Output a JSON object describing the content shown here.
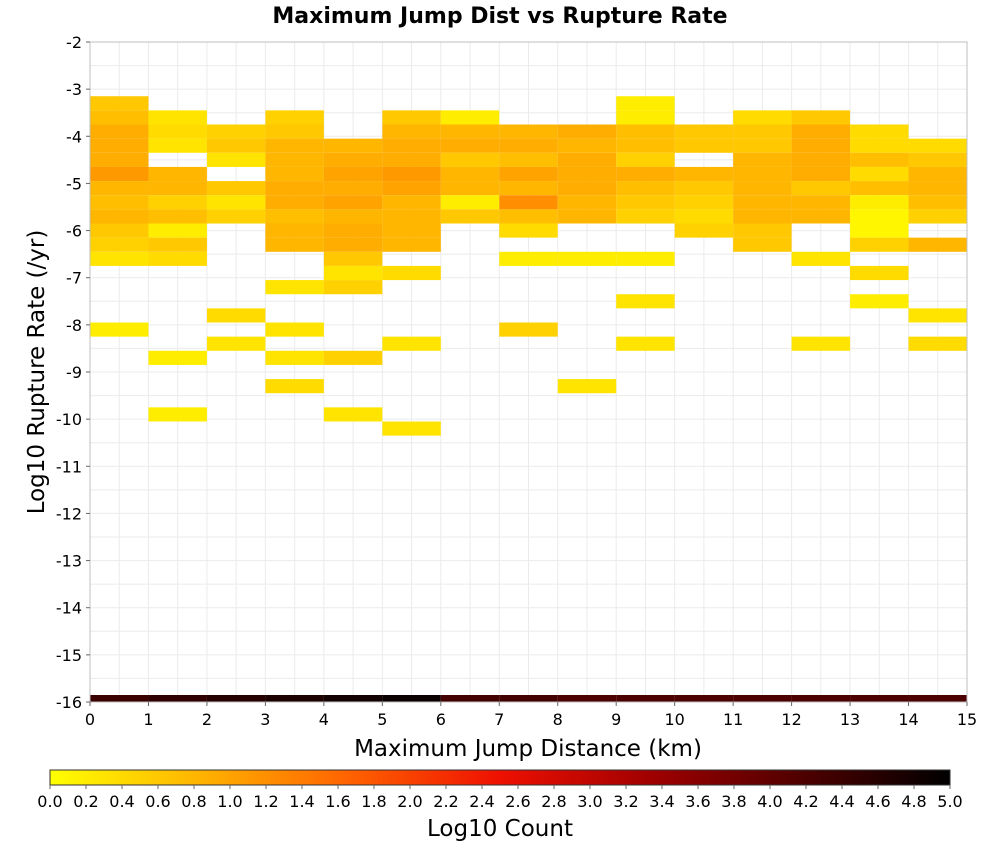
{
  "chart_data": {
    "type": "heatmap",
    "title": "Maximum Jump Dist vs Rupture Rate",
    "xlabel": "Maximum Jump Distance (km)",
    "ylabel": "Log10 Rupture Rate (/yr)",
    "xlim": [
      0,
      15
    ],
    "ylim": [
      -16,
      -2
    ],
    "x_ticks": [
      "0",
      "1",
      "2",
      "3",
      "4",
      "5",
      "6",
      "7",
      "8",
      "9",
      "10",
      "11",
      "12",
      "13",
      "14",
      "15"
    ],
    "y_ticks": [
      "-2",
      "-3",
      "-4",
      "-5",
      "-6",
      "-7",
      "-8",
      "-9",
      "-10",
      "-11",
      "-12",
      "-13",
      "-14",
      "-15",
      "-16"
    ],
    "grid": true,
    "colorbar": {
      "label": "Log10 Count",
      "range": [
        0.0,
        5.0
      ],
      "ticks": [
        "0.0",
        "0.2",
        "0.4",
        "0.6",
        "0.8",
        "1.0",
        "1.2",
        "1.4",
        "1.6",
        "1.8",
        "2.0",
        "2.2",
        "2.4",
        "2.6",
        "2.8",
        "3.0",
        "3.2",
        "3.4",
        "3.6",
        "3.8",
        "4.0",
        "4.2",
        "4.4",
        "4.6",
        "4.8",
        "5.0"
      ],
      "stops": [
        "#ffff00",
        "#ffb300",
        "#ff6200",
        "#ee1000",
        "#a00000",
        "#500000",
        "#000000"
      ]
    },
    "bin_width_x": 1,
    "bin_height_y": 0.3,
    "cells": [
      [
        0,
        -3.3,
        0.6
      ],
      [
        0,
        -3.6,
        0.7
      ],
      [
        0,
        -3.9,
        0.9
      ],
      [
        0,
        -4.2,
        0.9
      ],
      [
        0,
        -4.5,
        0.9
      ],
      [
        0,
        -4.8,
        1.1
      ],
      [
        0,
        -5.1,
        0.8
      ],
      [
        0,
        -5.4,
        0.7
      ],
      [
        0,
        -5.7,
        0.8
      ],
      [
        0,
        -6.0,
        0.6
      ],
      [
        0,
        -6.3,
        0.5
      ],
      [
        0,
        -6.6,
        0.3
      ],
      [
        0,
        -8.1,
        0.2
      ],
      [
        1,
        -3.6,
        0.3
      ],
      [
        1,
        -3.9,
        0.4
      ],
      [
        1,
        -4.2,
        0.3
      ],
      [
        1,
        -4.8,
        0.8
      ],
      [
        1,
        -5.1,
        0.8
      ],
      [
        1,
        -5.4,
        0.5
      ],
      [
        1,
        -5.7,
        0.7
      ],
      [
        1,
        -6.0,
        0.2
      ],
      [
        1,
        -6.3,
        0.6
      ],
      [
        1,
        -6.6,
        0.4
      ],
      [
        1,
        -8.7,
        0.2
      ],
      [
        1,
        -9.9,
        0.2
      ],
      [
        2,
        -3.9,
        0.5
      ],
      [
        2,
        -4.2,
        0.6
      ],
      [
        2,
        -4.5,
        0.3
      ],
      [
        2,
        -5.1,
        0.6
      ],
      [
        2,
        -5.4,
        0.3
      ],
      [
        2,
        -5.7,
        0.5
      ],
      [
        2,
        -7.8,
        0.4
      ],
      [
        2,
        -8.4,
        0.3
      ],
      [
        3,
        -3.6,
        0.5
      ],
      [
        3,
        -3.9,
        0.6
      ],
      [
        3,
        -4.2,
        0.8
      ],
      [
        3,
        -4.5,
        0.8
      ],
      [
        3,
        -4.8,
        0.8
      ],
      [
        3,
        -5.1,
        0.9
      ],
      [
        3,
        -5.4,
        0.9
      ],
      [
        3,
        -5.7,
        0.7
      ],
      [
        3,
        -6.0,
        0.8
      ],
      [
        3,
        -6.3,
        0.8
      ],
      [
        3,
        -7.2,
        0.3
      ],
      [
        3,
        -8.1,
        0.3
      ],
      [
        3,
        -8.7,
        0.3
      ],
      [
        3,
        -9.3,
        0.4
      ],
      [
        4,
        -4.2,
        0.8
      ],
      [
        4,
        -4.5,
        0.9
      ],
      [
        4,
        -4.8,
        1.0
      ],
      [
        4,
        -5.1,
        0.9
      ],
      [
        4,
        -5.4,
        1.0
      ],
      [
        4,
        -5.7,
        0.8
      ],
      [
        4,
        -6.0,
        0.9
      ],
      [
        4,
        -6.3,
        0.9
      ],
      [
        4,
        -6.6,
        0.6
      ],
      [
        4,
        -6.9,
        0.3
      ],
      [
        4,
        -7.2,
        0.5
      ],
      [
        4,
        -8.7,
        0.5
      ],
      [
        4,
        -9.9,
        0.3
      ],
      [
        5,
        -3.6,
        0.6
      ],
      [
        5,
        -3.9,
        0.8
      ],
      [
        5,
        -4.2,
        0.9
      ],
      [
        5,
        -4.5,
        0.9
      ],
      [
        5,
        -4.8,
        1.1
      ],
      [
        5,
        -5.1,
        1.0
      ],
      [
        5,
        -5.4,
        0.8
      ],
      [
        5,
        -5.7,
        0.8
      ],
      [
        5,
        -6.0,
        0.8
      ],
      [
        5,
        -6.3,
        0.8
      ],
      [
        5,
        -6.9,
        0.4
      ],
      [
        5,
        -8.4,
        0.3
      ],
      [
        5,
        -10.2,
        0.3
      ],
      [
        6,
        -3.6,
        0.2
      ],
      [
        6,
        -3.9,
        0.8
      ],
      [
        6,
        -4.2,
        0.9
      ],
      [
        6,
        -4.5,
        0.6
      ],
      [
        6,
        -4.8,
        0.8
      ],
      [
        6,
        -5.1,
        0.8
      ],
      [
        6,
        -5.4,
        0.2
      ],
      [
        6,
        -5.7,
        0.6
      ],
      [
        7,
        -3.9,
        0.8
      ],
      [
        7,
        -4.2,
        0.9
      ],
      [
        7,
        -4.5,
        0.7
      ],
      [
        7,
        -4.8,
        1.0
      ],
      [
        7,
        -5.1,
        0.8
      ],
      [
        7,
        -5.4,
        1.2
      ],
      [
        7,
        -5.7,
        0.7
      ],
      [
        7,
        -6.0,
        0.4
      ],
      [
        7,
        -6.6,
        0.2
      ],
      [
        7,
        -8.1,
        0.5
      ],
      [
        8,
        -3.9,
        0.9
      ],
      [
        8,
        -4.2,
        0.8
      ],
      [
        8,
        -4.5,
        0.9
      ],
      [
        8,
        -4.8,
        0.9
      ],
      [
        8,
        -5.1,
        0.9
      ],
      [
        8,
        -5.4,
        0.8
      ],
      [
        8,
        -5.7,
        0.8
      ],
      [
        8,
        -6.6,
        0.2
      ],
      [
        8,
        -9.3,
        0.3
      ],
      [
        9,
        -3.3,
        0.2
      ],
      [
        9,
        -3.6,
        0.2
      ],
      [
        9,
        -3.9,
        0.7
      ],
      [
        9,
        -4.2,
        0.7
      ],
      [
        9,
        -4.5,
        0.5
      ],
      [
        9,
        -4.8,
        0.9
      ],
      [
        9,
        -5.1,
        0.7
      ],
      [
        9,
        -5.4,
        0.6
      ],
      [
        9,
        -5.7,
        0.5
      ],
      [
        9,
        -6.6,
        0.2
      ],
      [
        9,
        -7.5,
        0.3
      ],
      [
        9,
        -8.4,
        0.3
      ],
      [
        10,
        -3.9,
        0.6
      ],
      [
        10,
        -4.2,
        0.6
      ],
      [
        10,
        -4.8,
        0.8
      ],
      [
        10,
        -5.1,
        0.6
      ],
      [
        10,
        -5.4,
        0.5
      ],
      [
        10,
        -5.7,
        0.4
      ],
      [
        10,
        -6.0,
        0.5
      ],
      [
        11,
        -3.6,
        0.4
      ],
      [
        11,
        -3.9,
        0.6
      ],
      [
        11,
        -4.2,
        0.6
      ],
      [
        11,
        -4.5,
        0.8
      ],
      [
        11,
        -4.8,
        0.8
      ],
      [
        11,
        -5.1,
        0.8
      ],
      [
        11,
        -5.4,
        0.8
      ],
      [
        11,
        -5.7,
        0.8
      ],
      [
        11,
        -6.0,
        0.6
      ],
      [
        11,
        -6.3,
        0.6
      ],
      [
        12,
        -3.6,
        0.6
      ],
      [
        12,
        -3.9,
        0.9
      ],
      [
        12,
        -4.2,
        0.9
      ],
      [
        12,
        -4.5,
        0.9
      ],
      [
        12,
        -4.8,
        0.9
      ],
      [
        12,
        -5.1,
        0.6
      ],
      [
        12,
        -5.4,
        0.8
      ],
      [
        12,
        -5.7,
        0.8
      ],
      [
        12,
        -6.6,
        0.3
      ],
      [
        12,
        -8.4,
        0.3
      ],
      [
        13,
        -3.9,
        0.4
      ],
      [
        13,
        -4.2,
        0.4
      ],
      [
        13,
        -4.5,
        0.7
      ],
      [
        13,
        -4.8,
        0.4
      ],
      [
        13,
        -5.1,
        0.7
      ],
      [
        13,
        -5.4,
        0.2
      ],
      [
        13,
        -5.7,
        0.1
      ],
      [
        13,
        -6.0,
        0.1
      ],
      [
        13,
        -6.3,
        0.5
      ],
      [
        13,
        -6.9,
        0.4
      ],
      [
        13,
        -7.5,
        0.2
      ],
      [
        14,
        -4.2,
        0.4
      ],
      [
        14,
        -4.5,
        0.6
      ],
      [
        14,
        -4.8,
        0.8
      ],
      [
        14,
        -5.1,
        0.8
      ],
      [
        14,
        -5.4,
        0.7
      ],
      [
        14,
        -5.7,
        0.5
      ],
      [
        14,
        -6.3,
        0.8
      ],
      [
        14,
        -7.8,
        0.3
      ],
      [
        14,
        -8.4,
        0.4
      ]
    ],
    "bottom_strip": [
      [
        0,
        1,
        4.4
      ],
      [
        1,
        2,
        4.5
      ],
      [
        2,
        3,
        4.6
      ],
      [
        3,
        4,
        4.7
      ],
      [
        4,
        5,
        4.8
      ],
      [
        5,
        6,
        4.9
      ],
      [
        6,
        7,
        4.3
      ],
      [
        7,
        8,
        4.3
      ],
      [
        8,
        9,
        4.2
      ],
      [
        9,
        10,
        4.2
      ],
      [
        10,
        11,
        4.2
      ],
      [
        11,
        12,
        4.2
      ],
      [
        12,
        13,
        4.2
      ],
      [
        13,
        14,
        4.2
      ],
      [
        14,
        15,
        4.2
      ]
    ]
  }
}
